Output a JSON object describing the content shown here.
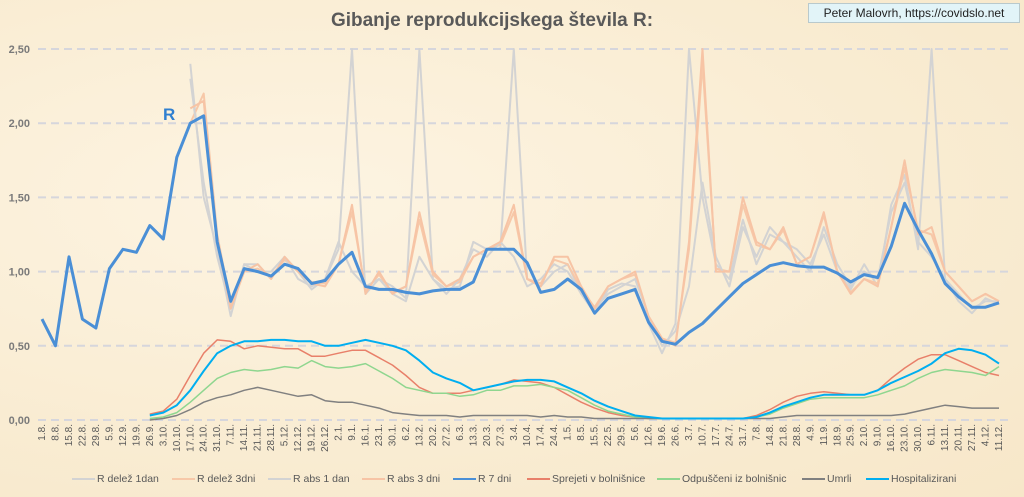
{
  "credit": "Peter Malovrh, https://covidslo.net",
  "chart_data": {
    "type": "line",
    "title": "Gibanje reprodukcijskega števila R:",
    "annotation": "R",
    "xlabel": "",
    "ylabel": "",
    "ylim": [
      0,
      2.5
    ],
    "yticks": [
      "0,00",
      "0,50",
      "1,00",
      "1,50",
      "2,00",
      "2,50"
    ],
    "grid": "horizontal dashed",
    "legend_position": "bottom",
    "categories": [
      "1.8.",
      "8.8.",
      "15.8.",
      "22.8.",
      "29.8.",
      "5.9.",
      "12.9.",
      "19.9.",
      "26.9.",
      "3.10.",
      "10.10.",
      "17.10.",
      "24.10.",
      "31.10.",
      "7.11.",
      "14.11.",
      "21.11.",
      "28.11.",
      "5.12.",
      "12.12.",
      "19.12.",
      "26.12.",
      "2.1.",
      "9.1.",
      "16.1.",
      "23.1.",
      "30.1.",
      "6.2.",
      "13.2.",
      "20.2.",
      "27.2.",
      "6.3.",
      "13.3.",
      "20.3.",
      "27.3.",
      "3.4.",
      "10.4.",
      "17.4.",
      "24.4.",
      "1.5.",
      "8.5.",
      "15.5.",
      "22.5.",
      "29.5.",
      "5.6.",
      "12.6.",
      "19.6.",
      "26.6.",
      "3.7.",
      "10.7.",
      "17.7.",
      "24.7.",
      "31.7.",
      "7.8.",
      "14.8.",
      "21.8.",
      "28.8.",
      "4.9.",
      "11.9.",
      "18.9.",
      "25.9.",
      "2.10.",
      "9.10.",
      "16.10.",
      "23.10.",
      "30.10.",
      "6.11.",
      "13.11.",
      "20.11.",
      "27.11.",
      "4.12.",
      "11.12."
    ],
    "series": [
      {
        "name": "R delež 1dan",
        "color": "#d3d3d3",
        "width": 2,
        "values": [
          null,
          null,
          null,
          null,
          null,
          null,
          null,
          null,
          null,
          null,
          null,
          2.4,
          1.5,
          1.15,
          0.7,
          1.05,
          1.05,
          0.95,
          1.1,
          1.0,
          0.88,
          0.95,
          1.15,
          2.5,
          0.85,
          0.95,
          0.9,
          0.82,
          2.5,
          0.95,
          0.88,
          0.9,
          1.2,
          1.15,
          1.15,
          2.5,
          0.95,
          0.9,
          1.0,
          1.05,
          0.85,
          0.72,
          0.88,
          0.92,
          0.9,
          0.65,
          0.45,
          0.65,
          2.5,
          1.5,
          1.05,
          0.95,
          1.35,
          1.05,
          1.25,
          1.2,
          1.15,
          1.05,
          1.25,
          1.0,
          0.88,
          1.05,
          0.9,
          1.45,
          1.65,
          1.15,
          2.5,
          0.95,
          0.8,
          0.72,
          0.82,
          0.78
        ]
      },
      {
        "name": "R delež 3dni",
        "color": "#f7c8a8",
        "width": 2,
        "values": [
          null,
          null,
          null,
          null,
          null,
          null,
          null,
          null,
          null,
          null,
          null,
          2.0,
          2.2,
          1.25,
          0.78,
          1.0,
          1.02,
          0.97,
          1.08,
          1.0,
          0.93,
          0.92,
          1.05,
          1.4,
          0.87,
          0.98,
          0.86,
          0.9,
          1.35,
          0.98,
          0.9,
          0.93,
          1.1,
          1.15,
          1.18,
          1.4,
          0.95,
          0.92,
          1.08,
          1.05,
          0.88,
          0.76,
          0.9,
          0.95,
          0.98,
          0.7,
          0.55,
          0.52,
          1.15,
          2.4,
          1.02,
          1.0,
          1.45,
          1.18,
          1.15,
          1.28,
          1.05,
          1.1,
          1.38,
          1.0,
          0.86,
          0.95,
          0.92,
          1.3,
          1.7,
          1.28,
          1.25,
          1.0,
          0.9,
          0.8,
          0.85,
          0.8
        ]
      },
      {
        "name": "R abs 1 dan",
        "color": "#d3d3d3",
        "width": 2,
        "values": [
          null,
          null,
          null,
          null,
          null,
          null,
          null,
          null,
          null,
          null,
          null,
          2.3,
          1.6,
          1.1,
          0.75,
          1.05,
          1.0,
          1.0,
          1.1,
          0.95,
          0.9,
          0.95,
          1.2,
          1.0,
          0.9,
          0.95,
          0.85,
          0.8,
          1.1,
          0.95,
          0.85,
          0.95,
          1.15,
          1.1,
          1.2,
          1.1,
          0.9,
          0.95,
          1.05,
          1.0,
          0.85,
          0.75,
          0.85,
          0.9,
          0.95,
          0.7,
          0.5,
          0.6,
          0.9,
          1.6,
          1.1,
          0.9,
          1.3,
          1.1,
          1.3,
          1.2,
          1.1,
          1.0,
          1.3,
          1.05,
          0.9,
          1.0,
          0.95,
          1.4,
          1.6,
          1.2,
          1.1,
          0.95,
          0.85,
          0.75,
          0.8,
          0.8
        ]
      },
      {
        "name": "R abs 3 dni",
        "color": "#f7c4a5",
        "width": 2,
        "values": [
          null,
          null,
          null,
          null,
          null,
          null,
          null,
          null,
          null,
          null,
          null,
          2.1,
          2.15,
          1.2,
          0.75,
          1.0,
          1.05,
          0.95,
          1.1,
          1.0,
          0.92,
          0.9,
          1.05,
          1.45,
          0.85,
          1.0,
          0.85,
          0.9,
          1.4,
          1.0,
          0.9,
          0.95,
          1.1,
          1.15,
          1.2,
          1.45,
          0.95,
          0.9,
          1.1,
          1.1,
          0.9,
          0.75,
          0.9,
          0.95,
          1.0,
          0.7,
          0.55,
          0.5,
          1.2,
          2.5,
          1.0,
          1.0,
          1.5,
          1.2,
          1.15,
          1.3,
          1.05,
          1.1,
          1.4,
          1.0,
          0.85,
          0.95,
          0.9,
          1.3,
          1.75,
          1.25,
          1.3,
          1.0,
          0.9,
          0.8,
          0.85,
          0.8
        ]
      },
      {
        "name": "R 7 dni",
        "color": "#4a8fd6",
        "width": 3,
        "values": [
          0.68,
          0.5,
          1.1,
          0.68,
          0.62,
          1.02,
          1.15,
          1.13,
          1.31,
          1.22,
          1.77,
          2.0,
          2.05,
          1.2,
          0.8,
          1.02,
          1.0,
          0.97,
          1.05,
          1.02,
          0.92,
          0.94,
          1.05,
          1.13,
          0.9,
          0.88,
          0.88,
          0.86,
          0.85,
          0.87,
          0.88,
          0.88,
          0.93,
          1.15,
          1.15,
          1.15,
          1.06,
          0.86,
          0.88,
          0.95,
          0.88,
          0.72,
          0.82,
          0.85,
          0.88,
          0.66,
          0.53,
          0.51,
          0.59,
          0.65,
          0.74,
          0.83,
          0.92,
          0.98,
          1.04,
          1.06,
          1.04,
          1.03,
          1.03,
          0.99,
          0.93,
          0.98,
          0.96,
          1.17,
          1.46,
          1.28,
          1.12,
          0.92,
          0.83,
          0.76,
          0.76,
          0.79
        ]
      },
      {
        "name": "Sprejeti v bolnišnice",
        "color": "#e8806a",
        "width": 1.5,
        "values": [
          null,
          null,
          null,
          null,
          null,
          null,
          null,
          null,
          0.04,
          0.06,
          0.14,
          0.3,
          0.45,
          0.54,
          0.53,
          0.48,
          0.5,
          0.49,
          0.48,
          0.48,
          0.43,
          0.43,
          0.45,
          0.47,
          0.47,
          0.42,
          0.37,
          0.3,
          0.22,
          0.18,
          0.18,
          0.18,
          0.2,
          0.22,
          0.24,
          0.27,
          0.26,
          0.25,
          0.22,
          0.17,
          0.12,
          0.08,
          0.05,
          0.03,
          0.02,
          0.01,
          0.01,
          0.01,
          0.01,
          0.01,
          0.01,
          0.01,
          0.01,
          0.03,
          0.07,
          0.12,
          0.16,
          0.18,
          0.19,
          0.18,
          0.17,
          0.17,
          0.2,
          0.28,
          0.35,
          0.41,
          0.44,
          0.44,
          0.4,
          0.36,
          0.32,
          0.3
        ]
      },
      {
        "name": "Odpuščeni iz bolnišnic",
        "color": "#8fd68f",
        "width": 1.5,
        "values": [
          null,
          null,
          null,
          null,
          null,
          null,
          null,
          null,
          0.01,
          0.02,
          0.05,
          0.12,
          0.2,
          0.28,
          0.32,
          0.34,
          0.33,
          0.34,
          0.36,
          0.35,
          0.4,
          0.36,
          0.35,
          0.36,
          0.38,
          0.33,
          0.28,
          0.22,
          0.2,
          0.18,
          0.18,
          0.16,
          0.17,
          0.2,
          0.2,
          0.23,
          0.23,
          0.24,
          0.22,
          0.2,
          0.15,
          0.1,
          0.06,
          0.04,
          0.02,
          0.01,
          0.01,
          0.01,
          0.01,
          0.01,
          0.01,
          0.01,
          0.01,
          0.02,
          0.04,
          0.08,
          0.11,
          0.14,
          0.15,
          0.15,
          0.15,
          0.15,
          0.17,
          0.2,
          0.23,
          0.28,
          0.32,
          0.34,
          0.33,
          0.32,
          0.3,
          0.36
        ]
      },
      {
        "name": "Umrli",
        "color": "#808080",
        "width": 1.5,
        "values": [
          null,
          null,
          null,
          null,
          null,
          null,
          null,
          null,
          0.0,
          0.01,
          0.03,
          0.07,
          0.12,
          0.15,
          0.17,
          0.2,
          0.22,
          0.2,
          0.18,
          0.16,
          0.17,
          0.13,
          0.12,
          0.12,
          0.1,
          0.08,
          0.05,
          0.04,
          0.03,
          0.03,
          0.03,
          0.02,
          0.03,
          0.03,
          0.03,
          0.03,
          0.03,
          0.02,
          0.03,
          0.02,
          0.02,
          0.01,
          0.01,
          0.01,
          0.01,
          0.01,
          0.01,
          0.01,
          0.01,
          0.01,
          0.01,
          0.01,
          0.01,
          0.01,
          0.01,
          0.02,
          0.03,
          0.03,
          0.03,
          0.03,
          0.03,
          0.03,
          0.03,
          0.03,
          0.04,
          0.06,
          0.08,
          0.1,
          0.09,
          0.08,
          0.08,
          0.08
        ]
      },
      {
        "name": "Hospitalizirani",
        "color": "#00aef0",
        "width": 2,
        "values": [
          null,
          null,
          null,
          null,
          null,
          null,
          null,
          null,
          0.03,
          0.05,
          0.1,
          0.2,
          0.33,
          0.45,
          0.5,
          0.53,
          0.53,
          0.54,
          0.54,
          0.53,
          0.53,
          0.5,
          0.5,
          0.52,
          0.54,
          0.52,
          0.5,
          0.47,
          0.4,
          0.32,
          0.28,
          0.25,
          0.2,
          0.22,
          0.24,
          0.26,
          0.27,
          0.27,
          0.26,
          0.22,
          0.18,
          0.13,
          0.09,
          0.06,
          0.03,
          0.02,
          0.01,
          0.01,
          0.01,
          0.01,
          0.01,
          0.01,
          0.01,
          0.02,
          0.05,
          0.09,
          0.12,
          0.15,
          0.17,
          0.17,
          0.17,
          0.17,
          0.2,
          0.25,
          0.29,
          0.33,
          0.38,
          0.45,
          0.48,
          0.47,
          0.44,
          0.38
        ]
      }
    ]
  }
}
